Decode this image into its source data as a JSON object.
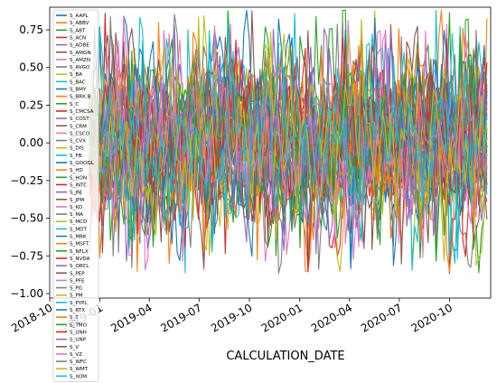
{
  "chart_data": {
    "type": "line",
    "xlabel": "CALCULATION_DATE",
    "ylabel": "",
    "title": "",
    "xlim": [
      "2018-10-01",
      "2020-12-15"
    ],
    "ylim": [
      -1.03,
      0.9
    ],
    "x_ticks": [
      "2018-10",
      "2019-01",
      "2019-04",
      "2019-07",
      "2019-10",
      "2020-01",
      "2020-04",
      "2020-07",
      "2020-10"
    ],
    "y_ticks": [
      -1.0,
      -0.75,
      -0.5,
      -0.25,
      0.0,
      0.25,
      0.5,
      0.75
    ],
    "y_tick_labels": [
      "−1.00",
      "−0.75",
      "−0.50",
      "−0.25",
      "0.00",
      "0.25",
      "0.50",
      "0.75"
    ],
    "legend_placement": "upper-left",
    "data_range": [
      "2018-12-12",
      "2020-12-08"
    ],
    "value_range_typical": [
      -0.62,
      0.62
    ],
    "value_extremes": [
      -0.95,
      0.88
    ],
    "series": [
      {
        "name": "S_AAPL",
        "color": "#1f77b4"
      },
      {
        "name": "S_ABBV",
        "color": "#ff7f0e"
      },
      {
        "name": "S_ABT",
        "color": "#2ca02c"
      },
      {
        "name": "S_ACN",
        "color": "#d62728"
      },
      {
        "name": "S_ADBE",
        "color": "#9467bd"
      },
      {
        "name": "S_AMGN",
        "color": "#8c564b"
      },
      {
        "name": "S_AMZN",
        "color": "#e377c2"
      },
      {
        "name": "S_AVGO",
        "color": "#7f7f7f"
      },
      {
        "name": "S_BA",
        "color": "#bcbd22"
      },
      {
        "name": "S_BAC",
        "color": "#17becf"
      },
      {
        "name": "S_BMY",
        "color": "#1f77b4"
      },
      {
        "name": "S_BRK.B",
        "color": "#ff7f0e"
      },
      {
        "name": "S_C",
        "color": "#2ca02c"
      },
      {
        "name": "S_CMCSA",
        "color": "#d62728"
      },
      {
        "name": "S_COST",
        "color": "#9467bd"
      },
      {
        "name": "S_CRM",
        "color": "#8c564b"
      },
      {
        "name": "S_CSCO",
        "color": "#e377c2"
      },
      {
        "name": "S_CVX",
        "color": "#7f7f7f"
      },
      {
        "name": "S_DIS",
        "color": "#bcbd22"
      },
      {
        "name": "S_FB",
        "color": "#17becf"
      },
      {
        "name": "S_GOOGL",
        "color": "#1f77b4"
      },
      {
        "name": "S_HD",
        "color": "#ff7f0e"
      },
      {
        "name": "S_HON",
        "color": "#2ca02c"
      },
      {
        "name": "S_INTC",
        "color": "#d62728"
      },
      {
        "name": "S_JNJ",
        "color": "#9467bd"
      },
      {
        "name": "S_JPM",
        "color": "#8c564b"
      },
      {
        "name": "S_KO",
        "color": "#e377c2"
      },
      {
        "name": "S_MA",
        "color": "#7f7f7f"
      },
      {
        "name": "S_MCD",
        "color": "#bcbd22"
      },
      {
        "name": "S_MDT",
        "color": "#17becf"
      },
      {
        "name": "S_MRK",
        "color": "#1f77b4"
      },
      {
        "name": "S_MSFT",
        "color": "#ff7f0e"
      },
      {
        "name": "S_NFLX",
        "color": "#2ca02c"
      },
      {
        "name": "S_NVDA",
        "color": "#d62728"
      },
      {
        "name": "S_ORCL",
        "color": "#9467bd"
      },
      {
        "name": "S_PEP",
        "color": "#8c564b"
      },
      {
        "name": "S_PFE",
        "color": "#e377c2"
      },
      {
        "name": "S_PG",
        "color": "#7f7f7f"
      },
      {
        "name": "S_PM",
        "color": "#bcbd22"
      },
      {
        "name": "S_PYPL",
        "color": "#17becf"
      },
      {
        "name": "S_RTX",
        "color": "#1f77b4"
      },
      {
        "name": "S_T",
        "color": "#ff7f0e"
      },
      {
        "name": "S_TMO",
        "color": "#2ca02c"
      },
      {
        "name": "S_UNH",
        "color": "#d62728"
      },
      {
        "name": "S_UNP",
        "color": "#9467bd"
      },
      {
        "name": "S_V",
        "color": "#8c564b"
      },
      {
        "name": "S_VZ",
        "color": "#e377c2"
      },
      {
        "name": "S_WFC",
        "color": "#7f7f7f"
      },
      {
        "name": "S_WMT",
        "color": "#bcbd22"
      },
      {
        "name": "S_XOM",
        "color": "#17becf"
      }
    ]
  }
}
